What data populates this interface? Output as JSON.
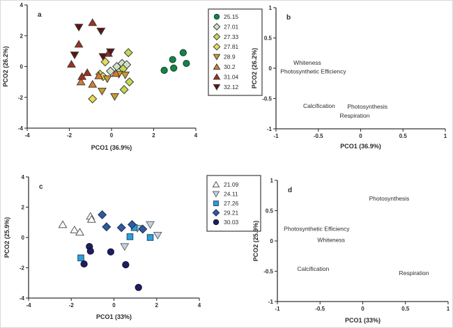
{
  "figure": {
    "background": "#ffffff",
    "text_color": "#2b2b2b",
    "axis_color": "#333333"
  },
  "chart_data": [
    {
      "panel": "a",
      "type": "scatter",
      "xlabel": "PCO1 (36.9%)",
      "ylabel": "PCO2 (26.2%)",
      "xlim": [
        -4,
        4
      ],
      "ylim": [
        -4,
        4
      ],
      "xticks": [
        -4,
        -2,
        0,
        2,
        4
      ],
      "yticks": [
        -4,
        -2,
        0,
        2,
        4
      ],
      "grid": false,
      "legend_position": "outside-right",
      "series": [
        {
          "name": "25.15",
          "marker": "circle",
          "fill": "#188148",
          "stroke": "#0d4527",
          "points": [
            [
              2.5,
              -0.25
            ],
            [
              2.95,
              -0.1
            ],
            [
              2.9,
              0.45
            ],
            [
              3.4,
              0.9
            ],
            [
              3.55,
              0.2
            ]
          ]
        },
        {
          "name": "27.01",
          "marker": "diamond",
          "fill": "#cfe2c8",
          "stroke": "#3a3a3a",
          "points": [
            [
              -0.05,
              -0.3
            ],
            [
              0.25,
              0.0
            ],
            [
              0.5,
              0.2
            ],
            [
              0.72,
              0.12
            ]
          ]
        },
        {
          "name": "27.33",
          "marker": "diamond",
          "fill": "#c3d94f",
          "stroke": "#3a3a3a",
          "points": [
            [
              0.8,
              0.9
            ],
            [
              0.55,
              -0.15
            ],
            [
              0.85,
              -1.0
            ],
            [
              0.6,
              -1.5
            ]
          ]
        },
        {
          "name": "27.81",
          "marker": "diamond",
          "fill": "#e5dd55",
          "stroke": "#3a3a3a",
          "points": [
            [
              -0.3,
              0.3
            ],
            [
              -0.55,
              -0.5
            ],
            [
              -0.4,
              -0.65
            ],
            [
              -0.9,
              -2.1
            ]
          ]
        },
        {
          "name": "28.9",
          "marker": "triangle-down",
          "fill": "#cc9a28",
          "stroke": "#3a3a3a",
          "points": [
            [
              0.65,
              -0.55
            ],
            [
              0.35,
              -0.5
            ],
            [
              -0.2,
              -0.8
            ],
            [
              -0.45,
              -1.6
            ],
            [
              0.15,
              -1.95
            ]
          ]
        },
        {
          "name": "30.2",
          "marker": "triangle-up",
          "fill": "#dd7a28",
          "stroke": "#3a3a3a",
          "points": [
            [
              0.2,
              -0.45
            ],
            [
              -0.6,
              -0.6
            ],
            [
              -0.9,
              -1.15
            ],
            [
              -1.45,
              -1.0
            ]
          ]
        },
        {
          "name": "31.04",
          "marker": "triangle-up",
          "fill": "#a42f1e",
          "stroke": "#3a3a3a",
          "points": [
            [
              -0.9,
              2.85
            ],
            [
              -1.55,
              1.45
            ],
            [
              -1.9,
              0.15
            ],
            [
              -0.15,
              0.85
            ],
            [
              -1.15,
              -0.4
            ],
            [
              -1.4,
              -0.65
            ]
          ]
        },
        {
          "name": "32.12",
          "marker": "triangle-down",
          "fill": "#5c1412",
          "stroke": "#3a3a3a",
          "points": [
            [
              -1.55,
              2.55
            ],
            [
              -0.5,
              2.3
            ],
            [
              -1.75,
              0.75
            ],
            [
              -0.4,
              0.65
            ],
            [
              -0.05,
              0.95
            ]
          ]
        }
      ]
    },
    {
      "panel": "b",
      "type": "scatter-text",
      "xlabel": "PCO1 (36.9%)",
      "ylabel": "PCO2 (26.2%)",
      "xlim": [
        -1,
        1
      ],
      "ylim": [
        -1,
        1
      ],
      "xticks": [
        -1,
        -0.5,
        0,
        0.5,
        1
      ],
      "yticks": [
        -1,
        -0.5,
        0,
        0.5,
        1
      ],
      "grid": false,
      "labels": [
        {
          "text": "Whiteness",
          "x": -0.63,
          "y": 0.09
        },
        {
          "text": "Photosynthetic Efficiency",
          "x": -0.56,
          "y": -0.05
        },
        {
          "text": "Calcification",
          "x": -0.49,
          "y": -0.62
        },
        {
          "text": "Photosynthesis",
          "x": 0.08,
          "y": -0.63
        },
        {
          "text": "Respiration",
          "x": -0.07,
          "y": -0.78
        }
      ]
    },
    {
      "panel": "c",
      "type": "scatter",
      "xlabel": "PCO1 (33%)",
      "ylabel": "PCO2 (25.9%)",
      "xlim": [
        -4,
        4
      ],
      "ylim": [
        -4,
        4
      ],
      "xticks": [
        -4,
        -2,
        0,
        2,
        4
      ],
      "yticks": [
        -4,
        -2,
        0,
        2,
        4
      ],
      "grid": false,
      "legend_position": "outside-right",
      "series": [
        {
          "name": "21.09",
          "marker": "triangle-up",
          "fill": "#ffffff",
          "stroke": "#555555",
          "points": [
            [
              -2.4,
              0.85
            ],
            [
              -1.85,
              0.5
            ],
            [
              -1.6,
              0.35
            ],
            [
              -1.1,
              1.4
            ],
            [
              -1.05,
              1.2
            ]
          ]
        },
        {
          "name": "24.11",
          "marker": "triangle-down",
          "fill": "#c3d3e3",
          "stroke": "#666666",
          "points": [
            [
              1.7,
              0.85
            ],
            [
              2.05,
              0.15
            ],
            [
              1.1,
              0.6
            ],
            [
              0.5,
              -0.6
            ]
          ]
        },
        {
          "name": "27.26",
          "marker": "square",
          "fill": "#2ba0d8",
          "stroke": "#27456b",
          "points": [
            [
              0.95,
              0.65
            ],
            [
              0.75,
              0.05
            ],
            [
              1.7,
              0.0
            ],
            [
              -1.55,
              -1.35
            ]
          ]
        },
        {
          "name": "29.21",
          "marker": "diamond",
          "fill": "#2f5b9d",
          "stroke": "#1c2f55",
          "points": [
            [
              -0.55,
              1.5
            ],
            [
              -0.35,
              0.7
            ],
            [
              0.35,
              0.65
            ],
            [
              0.85,
              0.85
            ],
            [
              1.35,
              0.55
            ]
          ]
        },
        {
          "name": "30.03",
          "marker": "circle",
          "fill": "#1e1e5f",
          "stroke": "#0e0e35",
          "points": [
            [
              -1.15,
              -0.6
            ],
            [
              -1.1,
              -0.9
            ],
            [
              -0.15,
              -0.95
            ],
            [
              -1.4,
              -1.75
            ],
            [
              0.55,
              -1.8
            ],
            [
              1.15,
              -3.3
            ]
          ]
        }
      ]
    },
    {
      "panel": "d",
      "type": "scatter-text",
      "xlabel": "PCO1 (33%)",
      "ylabel": "PCO2 (25.9%)",
      "xlim": [
        -1,
        1
      ],
      "ylim": [
        -1,
        1
      ],
      "xticks": [
        -1,
        -0.5,
        0,
        0.5,
        1
      ],
      "yticks": [
        -1,
        -0.5,
        0,
        0.5,
        1
      ],
      "grid": false,
      "labels": [
        {
          "text": "Photosynthesis",
          "x": 0.31,
          "y": 0.7
        },
        {
          "text": "Photosynthetic Efficiency",
          "x": -0.54,
          "y": 0.2
        },
        {
          "text": "Whiteness",
          "x": -0.37,
          "y": 0.02
        },
        {
          "text": "Calcification",
          "x": -0.58,
          "y": -0.46
        },
        {
          "text": "Respiration",
          "x": 0.6,
          "y": -0.53
        }
      ]
    }
  ]
}
